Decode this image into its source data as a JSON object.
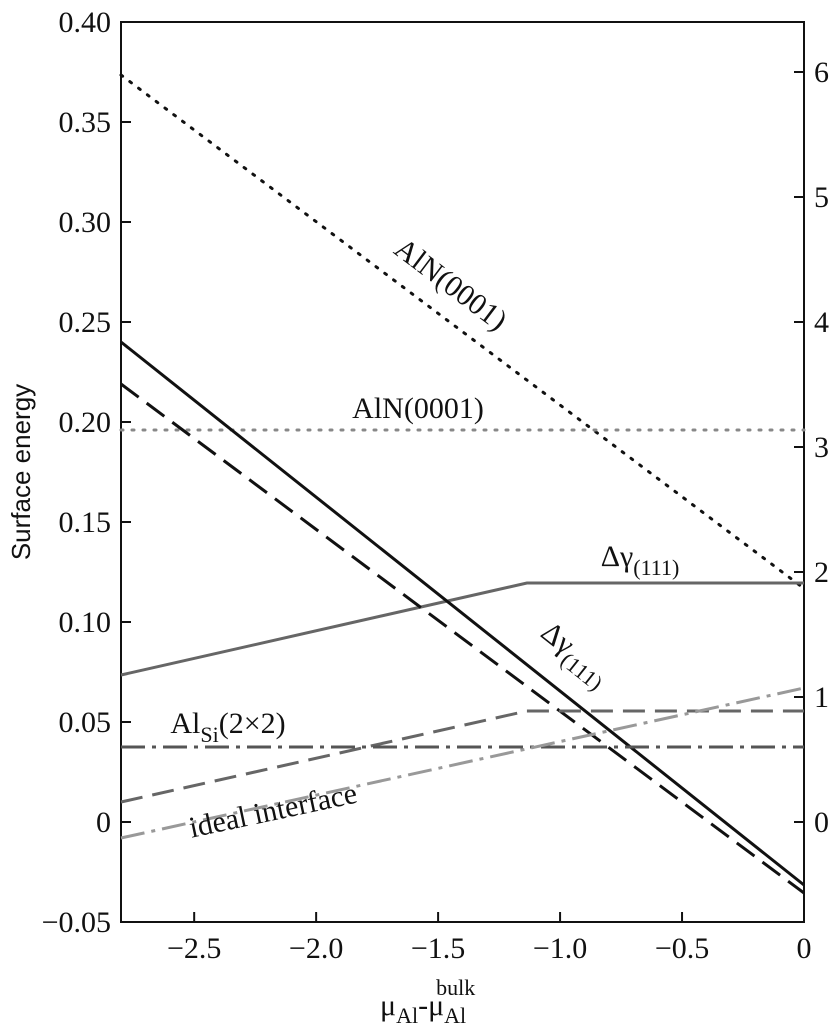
{
  "chart_data": {
    "type": "line",
    "y_label": "Surface energy",
    "x_label": [
      {
        "t": "μ"
      },
      {
        "t": "Al",
        "s": "sub"
      },
      {
        "t": "-μ"
      },
      {
        "t": "Al",
        "s": "sub"
      },
      {
        "t": "bulk",
        "s": "sup"
      }
    ],
    "xlim": [
      -2.8,
      0
    ],
    "xticks": [
      {
        "value": -2.5,
        "label": "−2.5"
      },
      {
        "value": -2.0,
        "label": "−2.0"
      },
      {
        "value": -1.5,
        "label": "−1.5"
      },
      {
        "value": -1.0,
        "label": "−1.0"
      },
      {
        "value": -0.5,
        "label": "−0.5"
      },
      0
    ],
    "ylim": [
      -0.05,
      0.4
    ],
    "yticks": [
      {
        "value": -0.05,
        "label": "−0.05"
      },
      0,
      0.05,
      {
        "value": 0.1,
        "label": "0.10"
      },
      0.15,
      {
        "value": 0.2,
        "label": "0.20"
      },
      0.25,
      {
        "value": 0.3,
        "label": "0.30"
      },
      0.35,
      {
        "value": 0.4,
        "label": "0.40"
      }
    ],
    "y2lim": [
      -0.8,
      6.4
    ],
    "y2ticks": [
      0,
      1,
      2,
      3,
      4,
      5,
      6
    ],
    "series": [
      {
        "label": {
          "text": "AlN(0001)"
        },
        "color": "#111111",
        "dash": "dot",
        "x": [
          -2.8,
          0
        ],
        "values": [
          0.3735,
          0.1168
        ]
      },
      {
        "label": {
          "text": "AlN(0001)"
        },
        "color": "#888888",
        "dash": "dot",
        "x": [
          -2.8,
          0
        ],
        "values": [
          0.196,
          0.196
        ]
      },
      {
        "label": {
          "text": "Δγ",
          "sub": "(111)"
        },
        "color": "#666666",
        "dash": "solid",
        "x": [
          -2.8,
          -1.136,
          0
        ],
        "values": [
          0.0735,
          0.1195,
          0.1195
        ]
      },
      {
        "label": {
          "text": "Δγ",
          "sub": "(111)"
        },
        "color": "#111111",
        "dash": "solid",
        "x": [
          -2.8,
          0
        ],
        "values": [
          0.24,
          -0.0315
        ]
      },
      {
        "color": "#111111",
        "dash": "dash",
        "x": [
          -2.8,
          0
        ],
        "values": [
          0.219,
          -0.0355
        ]
      },
      {
        "color": "#666666",
        "dash": "dash",
        "x": [
          -2.8,
          -1.136,
          0
        ],
        "values": [
          0.01,
          0.0555,
          0.0555
        ]
      },
      {
        "label": {
          "text": "Al",
          "sub": "Si",
          "after": "(2×2)"
        },
        "color": "#555555",
        "dash": "dashdot",
        "x": [
          -2.8,
          0
        ],
        "values": [
          0.0375,
          0.0375
        ]
      },
      {
        "label": {
          "text": "ideal interface"
        },
        "color": "#999999",
        "dash": "dashdot",
        "x": [
          -2.8,
          0
        ],
        "values": [
          -0.008,
          0.067
        ]
      }
    ]
  }
}
